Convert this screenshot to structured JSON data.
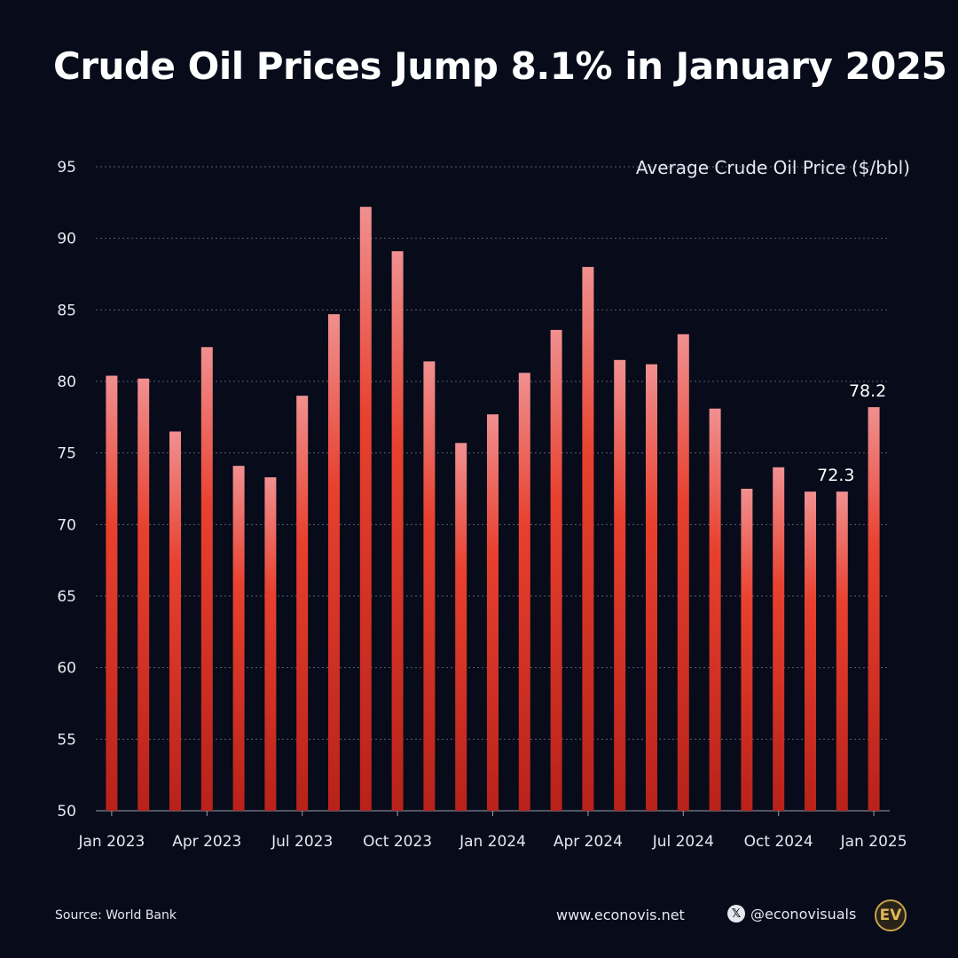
{
  "title": "Crude Oil Prices Jump 8.1% in January 2025",
  "footer": {
    "source": "Source: World Bank",
    "website": "www.econovis.net",
    "social": "@econovisuals",
    "logo_text": "EV"
  },
  "colors": {
    "background": "#070b1a",
    "bar_top": "#f09090",
    "bar_mid": "#e8402e",
    "bar_bottom": "#b8221a",
    "grid": "#5a6070",
    "text": "#e6e8ee"
  },
  "chart_data": {
    "type": "bar",
    "title": "Crude Oil Prices Jump 8.1% in January 2025",
    "ylabel": "Average Crude Oil Price ($/bbl)",
    "xlabel": "",
    "ylim": [
      50,
      95
    ],
    "yticks": [
      50,
      55,
      60,
      65,
      70,
      75,
      80,
      85,
      90,
      95
    ],
    "grid": true,
    "categories": [
      "Jan 2023",
      "Feb 2023",
      "Mar 2023",
      "Apr 2023",
      "May 2023",
      "Jun 2023",
      "Jul 2023",
      "Aug 2023",
      "Sep 2023",
      "Oct 2023",
      "Nov 2023",
      "Dec 2023",
      "Jan 2024",
      "Feb 2024",
      "Mar 2024",
      "Apr 2024",
      "May 2024",
      "Jun 2024",
      "Jul 2024",
      "Aug 2024",
      "Sep 2024",
      "Oct 2024",
      "Nov 2024",
      "Dec 2024",
      "Jan 2025"
    ],
    "values": [
      80.4,
      80.2,
      76.5,
      82.4,
      74.1,
      73.3,
      79.0,
      84.7,
      92.2,
      89.1,
      81.4,
      75.7,
      77.7,
      80.6,
      83.6,
      88.0,
      81.5,
      81.2,
      83.3,
      78.1,
      72.5,
      74.0,
      72.3,
      72.3,
      78.2
    ],
    "xtick_labels": [
      "Jan 2023",
      "Apr 2023",
      "Jul 2023",
      "Oct 2023",
      "Jan 2024",
      "Apr 2024",
      "Jul 2024",
      "Oct 2024",
      "Jan 2025"
    ],
    "xtick_indices": [
      0,
      3,
      6,
      9,
      12,
      15,
      18,
      21,
      24
    ],
    "data_labels": [
      {
        "index": 23,
        "text": "72.3"
      },
      {
        "index": 24,
        "text": "78.2"
      }
    ]
  }
}
